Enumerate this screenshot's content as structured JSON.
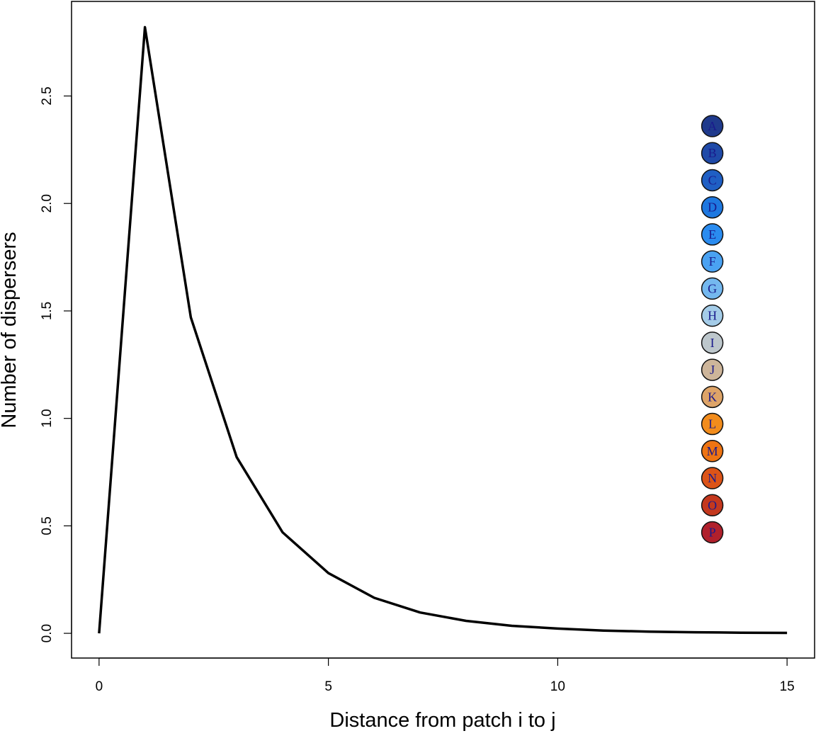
{
  "chart_data": {
    "type": "line",
    "title": "",
    "xlabel": "Distance from patch i to j",
    "ylabel": "Number of dispersers",
    "xlim": [
      -0.6,
      15.6
    ],
    "ylim": [
      -0.115,
      2.94
    ],
    "xticks": [
      0,
      5,
      10,
      15
    ],
    "xtick_labels": [
      "0",
      "5",
      "10",
      "15"
    ],
    "yticks": [
      0.0,
      0.5,
      1.0,
      1.5,
      2.0,
      2.5
    ],
    "ytick_labels": [
      "0.0",
      "0.5",
      "1.0",
      "1.5",
      "2.0",
      "2.5"
    ],
    "grid": false,
    "series": [
      {
        "color": "#000000",
        "x": [
          0,
          1,
          2,
          3,
          4,
          5,
          6,
          7,
          8,
          9,
          10,
          11,
          12,
          13,
          14,
          15
        ],
        "y": [
          0.0,
          2.82,
          1.47,
          0.82,
          0.47,
          0.28,
          0.165,
          0.097,
          0.058,
          0.035,
          0.022,
          0.013,
          0.008,
          0.005,
          0.003,
          0.002
        ]
      }
    ],
    "markers": [
      {
        "label": "A",
        "y": 2.36,
        "fill": "#1f3a8c"
      },
      {
        "label": "B",
        "y": 2.234,
        "fill": "#1f4aa8"
      },
      {
        "label": "C",
        "y": 2.108,
        "fill": "#1f5fc4"
      },
      {
        "label": "D",
        "y": 1.982,
        "fill": "#1e78e0"
      },
      {
        "label": "E",
        "y": 1.856,
        "fill": "#2a8cf0"
      },
      {
        "label": "F",
        "y": 1.73,
        "fill": "#4aa2f2"
      },
      {
        "label": "G",
        "y": 1.604,
        "fill": "#74b8ef"
      },
      {
        "label": "H",
        "y": 1.478,
        "fill": "#a4cce8"
      },
      {
        "label": "I",
        "y": 1.352,
        "fill": "#bdc7cc"
      },
      {
        "label": "J",
        "y": 1.226,
        "fill": "#cdb59a"
      },
      {
        "label": "K",
        "y": 1.1,
        "fill": "#dea468"
      },
      {
        "label": "L",
        "y": 0.974,
        "fill": "#f28c1c"
      },
      {
        "label": "M",
        "y": 0.848,
        "fill": "#ee7412"
      },
      {
        "label": "N",
        "y": 0.722,
        "fill": "#dc5418"
      },
      {
        "label": "O",
        "y": 0.596,
        "fill": "#c4381e"
      },
      {
        "label": "P",
        "y": 0.47,
        "fill": "#b0202c"
      }
    ],
    "marker_x": 13.37,
    "marker_label_color": "#1a1a8c"
  }
}
